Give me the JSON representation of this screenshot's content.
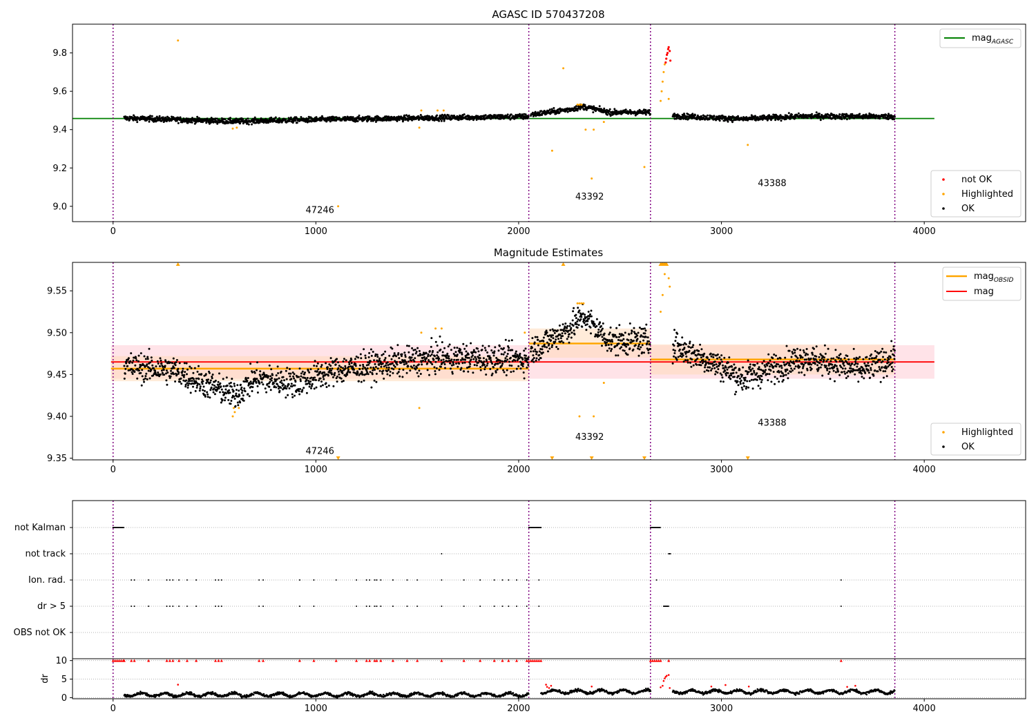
{
  "colors": {
    "not_ok": "#ff0000",
    "highlighted": "#ffa500",
    "ok": "#000000",
    "agasc_line": "#008000",
    "obsid_line": "#ffa500",
    "mag_line": "#ff0000",
    "mag_band": "#ffc0cb",
    "obsid_band": "#ffdab9",
    "boundary": "#800080",
    "grid": "#b0b0b0"
  },
  "panel1": {
    "title": "AGASC ID 570437208",
    "legend_line_label": "mag",
    "legend_line_sub": "AGASC",
    "legend": [
      "not OK",
      "Highlighted",
      "OK"
    ]
  },
  "panel2": {
    "title": "Magnitude Estimates",
    "legend_obsid_label": "mag",
    "legend_obsid_sub": "OBSID",
    "legend_mag_label": "mag",
    "legend": [
      "Highlighted",
      "OK"
    ]
  },
  "panel3": {
    "flags": [
      "not Kalman",
      "not track",
      "Ion. rad.",
      "dr > 5",
      "OBS not OK"
    ],
    "dr_label": "dr"
  },
  "chart_data": [
    {
      "type": "scatter",
      "title": "AGASC ID 570437208",
      "xlim": [
        -200,
        4500
      ],
      "ylim": [
        8.92,
        9.95
      ],
      "x_ticks": [
        0,
        1000,
        2000,
        3000,
        4000
      ],
      "y_ticks": [
        9.0,
        9.2,
        9.4,
        9.6,
        9.8
      ],
      "mag_agasc": 9.458,
      "agasc_line_x": [
        -200,
        4050
      ],
      "boundaries": [
        0,
        2050,
        2650,
        3855
      ],
      "obsids": [
        {
          "label": "47246",
          "x": 1020,
          "y": 8.965,
          "start": 0,
          "end": 2050
        },
        {
          "label": "43392",
          "x": 2350,
          "y": 9.035,
          "start": 2050,
          "end": 2650
        },
        {
          "label": "43388",
          "x": 3250,
          "y": 9.105,
          "start": 2650,
          "end": 3855
        }
      ],
      "ok_segments": [
        {
          "start": 55,
          "end": 2050,
          "trend": [
            [
              55,
              9.46
            ],
            [
              600,
              9.443
            ],
            [
              1000,
              9.452
            ],
            [
              1600,
              9.462
            ],
            [
              2050,
              9.468
            ]
          ]
        },
        {
          "start": 2060,
          "end": 2650,
          "trend": [
            [
              2060,
              9.478
            ],
            [
              2250,
              9.505
            ],
            [
              2320,
              9.52
            ],
            [
              2450,
              9.49
            ],
            [
              2650,
              9.49
            ]
          ]
        },
        {
          "start": 2760,
          "end": 3855,
          "trend": [
            [
              2760,
              9.472
            ],
            [
              3100,
              9.455
            ],
            [
              3400,
              9.47
            ],
            [
              3855,
              9.468
            ]
          ]
        }
      ],
      "highlighted_points": [
        [
          320,
          9.865
        ],
        [
          590,
          9.405
        ],
        [
          610,
          9.41
        ],
        [
          1510,
          9.41
        ],
        [
          1520,
          9.5
        ],
        [
          1600,
          9.5
        ],
        [
          1630,
          9.5
        ],
        [
          1110,
          9.0
        ],
        [
          2165,
          9.29
        ],
        [
          2220,
          9.72
        ],
        [
          2290,
          9.53
        ],
        [
          2300,
          9.53
        ],
        [
          2310,
          9.53
        ],
        [
          2330,
          9.4
        ],
        [
          2360,
          9.145
        ],
        [
          2370,
          9.4
        ],
        [
          2420,
          9.44
        ],
        [
          2620,
          9.205
        ],
        [
          2700,
          9.55
        ],
        [
          2705,
          9.6
        ],
        [
          2710,
          9.65
        ],
        [
          2715,
          9.7
        ],
        [
          2720,
          9.74
        ],
        [
          2740,
          9.56
        ],
        [
          3130,
          9.32
        ]
      ],
      "not_ok_points": [
        [
          2725,
          9.75
        ],
        [
          2728,
          9.77
        ],
        [
          2731,
          9.79
        ],
        [
          2734,
          9.8
        ],
        [
          2737,
          9.82
        ],
        [
          2740,
          9.83
        ],
        [
          2745,
          9.81
        ],
        [
          2748,
          9.76
        ]
      ],
      "legend_entries": [
        "not OK",
        "Highlighted",
        "OK"
      ]
    },
    {
      "type": "scatter",
      "title": "Magnitude Estimates",
      "xlim": [
        -200,
        4500
      ],
      "ylim": [
        9.348,
        9.584
      ],
      "x_ticks": [
        0,
        1000,
        2000,
        3000,
        4000
      ],
      "y_ticks": [
        9.35,
        9.4,
        9.45,
        9.5,
        9.55
      ],
      "mag": 9.465,
      "mag_band": [
        9.445,
        9.485
      ],
      "mag_line_x": [
        -10,
        4050
      ],
      "obsid_mags": [
        {
          "start": -10,
          "end": 2050,
          "mag": 9.457,
          "band": [
            9.442,
            9.472
          ]
        },
        {
          "start": 2050,
          "end": 2650,
          "mag": 9.487,
          "band": [
            9.47,
            9.505
          ]
        },
        {
          "start": 2650,
          "end": 3855,
          "mag": 9.468,
          "band": [
            9.45,
            9.486
          ]
        }
      ],
      "boundaries": [
        0,
        2050,
        2650,
        3855
      ],
      "obsids": [
        {
          "label": "47246",
          "x": 1020,
          "y": 9.355
        },
        {
          "label": "43392",
          "x": 2350,
          "y": 9.372
        },
        {
          "label": "43388",
          "x": 3250,
          "y": 9.389
        }
      ],
      "ok_segments": [
        {
          "start": 55,
          "end": 2050,
          "trend": [
            [
              55,
              9.46
            ],
            [
              300,
              9.455
            ],
            [
              600,
              9.425
            ],
            [
              700,
              9.445
            ],
            [
              900,
              9.44
            ],
            [
              1100,
              9.455
            ],
            [
              1600,
              9.47
            ],
            [
              2050,
              9.468
            ]
          ]
        },
        {
          "start": 2060,
          "end": 2650,
          "trend": [
            [
              2060,
              9.478
            ],
            [
              2250,
              9.505
            ],
            [
              2320,
              9.52
            ],
            [
              2450,
              9.49
            ],
            [
              2650,
              9.49
            ]
          ]
        },
        {
          "start": 2760,
          "end": 3855,
          "trend": [
            [
              2760,
              9.485
            ],
            [
              3000,
              9.46
            ],
            [
              3100,
              9.445
            ],
            [
              3400,
              9.47
            ],
            [
              3700,
              9.455
            ],
            [
              3855,
              9.47
            ]
          ]
        }
      ],
      "highlighted_points": [
        [
          590,
          9.4
        ],
        [
          595,
          9.41
        ],
        [
          600,
          9.405
        ],
        [
          620,
          9.41
        ],
        [
          1510,
          9.41
        ],
        [
          1520,
          9.5
        ],
        [
          1590,
          9.505
        ],
        [
          1620,
          9.505
        ],
        [
          2030,
          9.5
        ],
        [
          2290,
          9.535
        ],
        [
          2300,
          9.535
        ],
        [
          2310,
          9.535
        ],
        [
          2320,
          9.535
        ],
        [
          2300,
          9.4
        ],
        [
          2370,
          9.4
        ],
        [
          2420,
          9.44
        ],
        [
          2700,
          9.525
        ],
        [
          2710,
          9.545
        ],
        [
          2720,
          9.57
        ],
        [
          2740,
          9.565
        ],
        [
          2745,
          9.555
        ]
      ],
      "clipped_high": [
        320,
        2220,
        2700,
        2705,
        2710,
        2715,
        2720,
        2725,
        2730
      ],
      "clipped_low": [
        1110,
        2165,
        2360,
        2620,
        3130
      ],
      "legend_entries": [
        "Highlighted",
        "OK"
      ]
    },
    {
      "type": "scatter",
      "title": "",
      "xlim": [
        -200,
        4500
      ],
      "flag_rows": [
        "not Kalman",
        "not track",
        "Ion. rad.",
        "dr > 5",
        "OBS not OK"
      ],
      "boundaries": [
        0,
        2050,
        2650,
        3855
      ],
      "flag_ranges": {
        "not Kalman": [
          [
            0,
            55
          ],
          [
            2050,
            2110
          ],
          [
            2650,
            2700
          ]
        ],
        "not track": [
          [
            1620,
            1620
          ],
          [
            2740,
            2750
          ]
        ],
        "dr > 5": [
          [
            2715,
            2740
          ]
        ],
        "OBS not OK": []
      },
      "flag_points": {
        "Ion. rad.": [
          90,
          105,
          175,
          265,
          280,
          295,
          325,
          365,
          410,
          505,
          520,
          535,
          720,
          740,
          920,
          990,
          1100,
          1200,
          1250,
          1265,
          1290,
          1300,
          1320,
          1380,
          1450,
          1500,
          1620,
          1730,
          1810,
          1880,
          1920,
          1950,
          1990,
          2040,
          2100,
          2680,
          3590
        ],
        "dr > 5": [
          90,
          105,
          175,
          265,
          280,
          295,
          325,
          365,
          410,
          505,
          520,
          535,
          720,
          740,
          920,
          990,
          1200,
          1250,
          1265,
          1290,
          1300,
          1320,
          1380,
          1450,
          1500,
          1620,
          1730,
          1810,
          1880,
          1920,
          1950,
          1990,
          2040,
          2100,
          3590
        ]
      },
      "flag_markers_10": [
        0,
        10,
        20,
        30,
        40,
        50,
        55,
        90,
        105,
        175,
        265,
        280,
        295,
        325,
        365,
        410,
        505,
        520,
        535,
        720,
        740,
        920,
        990,
        1100,
        1200,
        1250,
        1265,
        1290,
        1300,
        1320,
        1380,
        1450,
        1500,
        1620,
        1730,
        1810,
        1880,
        1920,
        1950,
        1990,
        2040,
        2050,
        2060,
        2070,
        2080,
        2090,
        2100,
        2110,
        2650,
        2660,
        2670,
        2680,
        2690,
        2700,
        2740,
        3590
      ]
    },
    {
      "type": "scatter",
      "title": "",
      "ylabel": "dr",
      "xlim": [
        -200,
        4500
      ],
      "ylim": [
        -0.3,
        10.5
      ],
      "y_ticks": [
        0,
        5,
        10
      ],
      "x_ticks": [
        0,
        1000,
        2000,
        3000,
        4000
      ],
      "boundaries": [
        0,
        2050,
        2650,
        3855
      ],
      "ok_segments": [
        {
          "start": 55,
          "end": 2050,
          "level": 0.8
        },
        {
          "start": 2110,
          "end": 2650,
          "level": 1.6
        },
        {
          "start": 2760,
          "end": 3855,
          "level": 1.6
        }
      ],
      "not_ok_points": [
        [
          320,
          3.5
        ],
        [
          2135,
          3.5
        ],
        [
          2140,
          2.9
        ],
        [
          2150,
          2.6
        ],
        [
          2160,
          3.2
        ],
        [
          2360,
          3.0
        ],
        [
          2700,
          2.8
        ],
        [
          2710,
          3.2
        ],
        [
          2715,
          4.5
        ],
        [
          2720,
          5.2
        ],
        [
          2725,
          5.6
        ],
        [
          2730,
          5.9
        ],
        [
          2740,
          6.1
        ],
        [
          2745,
          2.6
        ],
        [
          2950,
          3.0
        ],
        [
          3020,
          3.4
        ],
        [
          3135,
          3.0
        ],
        [
          3620,
          2.9
        ],
        [
          3660,
          3.2
        ]
      ]
    }
  ]
}
